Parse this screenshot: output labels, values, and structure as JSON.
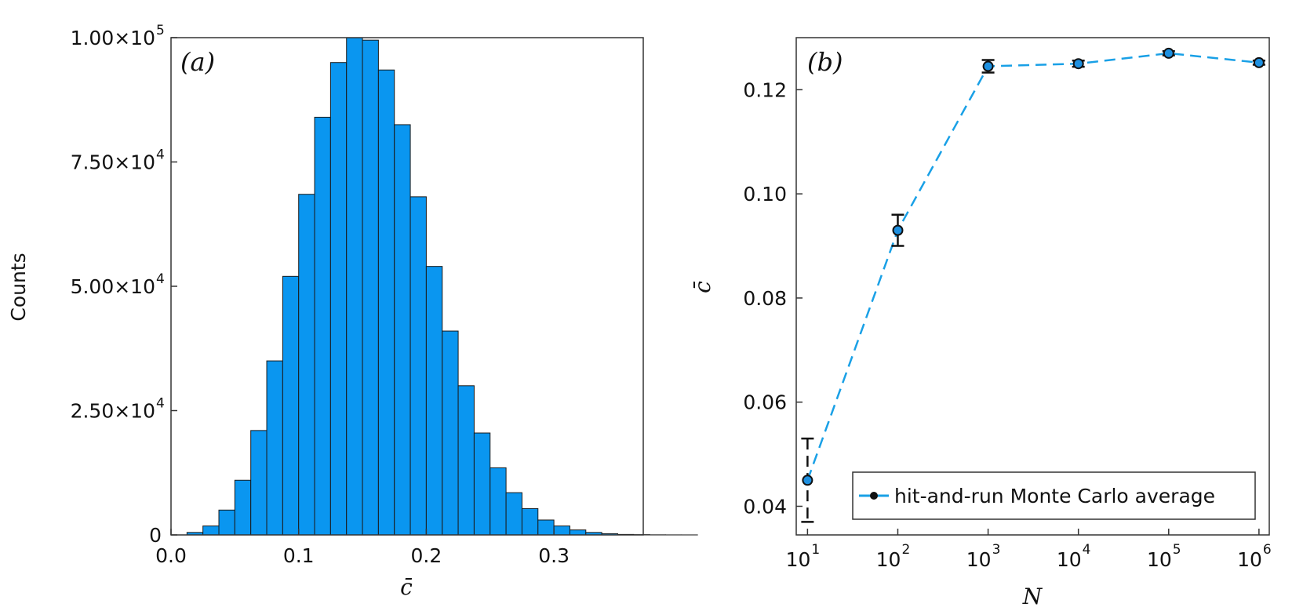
{
  "colors": {
    "bar_fill": "#0a96f0",
    "line": "#19a0e6",
    "marker_fill": "#1e90e0",
    "axis": "#333333",
    "ink": "#111111"
  },
  "chart_data": [
    {
      "type": "bar",
      "panel_label": "(a)",
      "xlabel": "c̄",
      "ylabel": "Counts",
      "xlim": [
        0.0,
        0.37
      ],
      "ylim": [
        0,
        100000
      ],
      "bin_width": 0.0125,
      "bin_start": 0.0,
      "values": [
        0,
        500,
        1800,
        5000,
        11000,
        21000,
        35000,
        52000,
        68500,
        84000,
        95000,
        100000,
        99500,
        93500,
        82500,
        68000,
        54000,
        41000,
        30000,
        20500,
        13500,
        8500,
        5300,
        3000,
        1800,
        1000,
        500,
        250,
        100,
        50,
        20,
        10,
        5,
        0
      ],
      "xticks": [
        {
          "value": 0.0,
          "label": "0.0"
        },
        {
          "value": 0.1,
          "label": "0.1"
        },
        {
          "value": 0.2,
          "label": "0.2"
        },
        {
          "value": 0.3,
          "label": "0.3"
        }
      ],
      "yticks": [
        {
          "value": 0,
          "mantissa": "0",
          "exp": ""
        },
        {
          "value": 25000,
          "mantissa": "2.50×10",
          "exp": "4"
        },
        {
          "value": 50000,
          "mantissa": "5.00×10",
          "exp": "4"
        },
        {
          "value": 75000,
          "mantissa": "7.50×10",
          "exp": "4"
        },
        {
          "value": 100000,
          "mantissa": "1.00×10",
          "exp": "5"
        }
      ],
      "grid": false
    },
    {
      "type": "line",
      "panel_label": "(b)",
      "xlabel": "N",
      "ylabel": "c̄",
      "xscale": "log",
      "xlim": [
        7.5,
        1300000
      ],
      "ylim": [
        0.0345,
        0.13
      ],
      "series": [
        {
          "name": "hit-and-run Monte Carlo average",
          "x": [
            10,
            100,
            1000,
            10000,
            100000,
            1000000
          ],
          "y": [
            0.045,
            0.093,
            0.1245,
            0.125,
            0.127,
            0.1252
          ],
          "yerr": [
            0.008,
            0.003,
            0.0012,
            0.0006,
            0.0004,
            0.0004
          ]
        }
      ],
      "xticks": [
        {
          "value": 10,
          "base": "10",
          "exp": "1"
        },
        {
          "value": 100,
          "base": "10",
          "exp": "2"
        },
        {
          "value": 1000,
          "base": "10",
          "exp": "3"
        },
        {
          "value": 10000,
          "base": "10",
          "exp": "4"
        },
        {
          "value": 100000,
          "base": "10",
          "exp": "5"
        },
        {
          "value": 1000000,
          "base": "10",
          "exp": "6"
        }
      ],
      "yticks": [
        {
          "value": 0.04,
          "label": "0.04"
        },
        {
          "value": 0.06,
          "label": "0.06"
        },
        {
          "value": 0.08,
          "label": "0.08"
        },
        {
          "value": 0.1,
          "label": "0.10"
        },
        {
          "value": 0.12,
          "label": "0.12"
        }
      ],
      "legend_position": "bottom-right",
      "grid": false
    }
  ]
}
